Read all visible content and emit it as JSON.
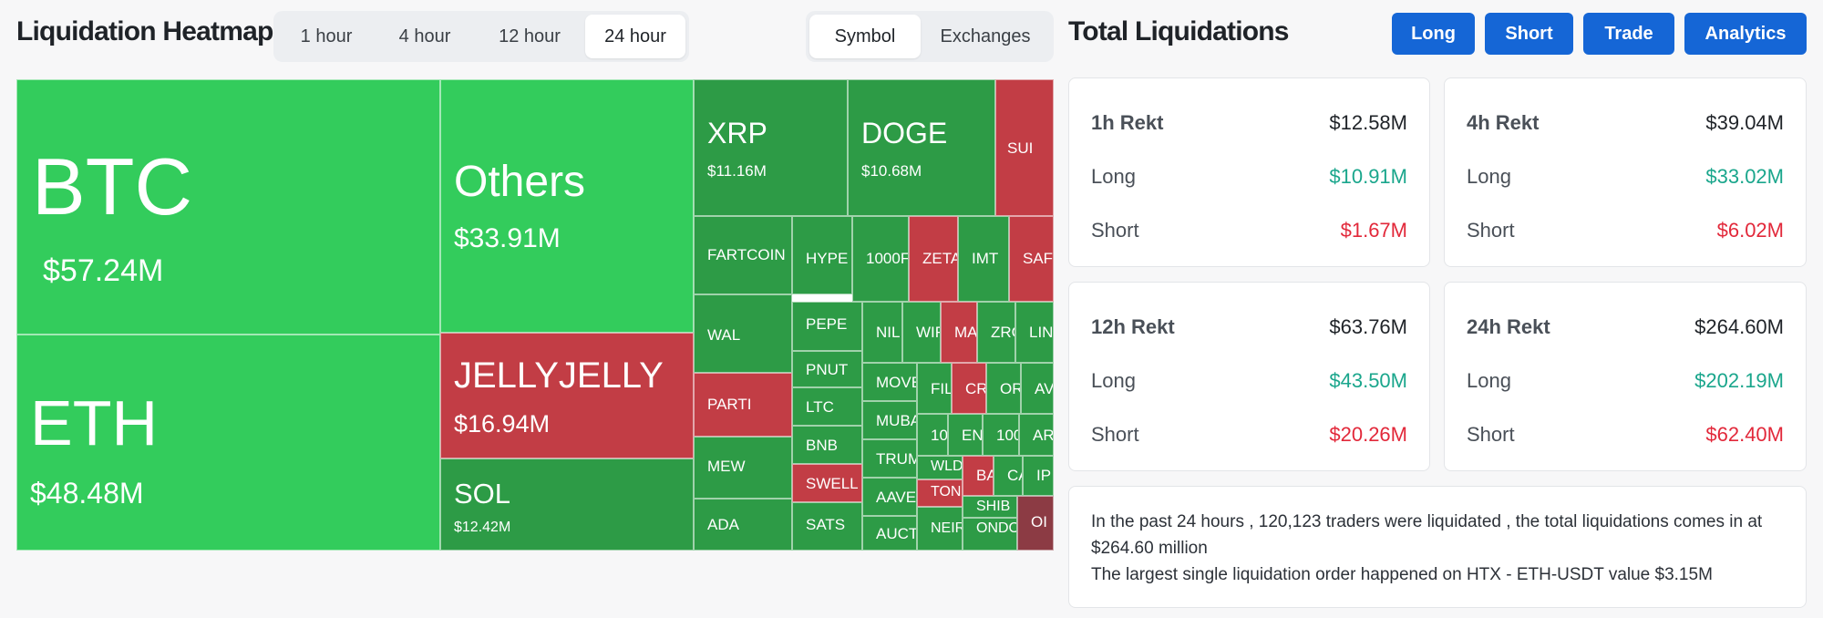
{
  "heatmap_title": "Liquidation Heatmap",
  "time_tabs": [
    {
      "label": "1 hour",
      "active": false
    },
    {
      "label": "4 hour",
      "active": false
    },
    {
      "label": "12 hour",
      "active": false
    },
    {
      "label": "24 hour",
      "active": true
    }
  ],
  "view_tabs": [
    {
      "label": "Symbol",
      "active": true
    },
    {
      "label": "Exchanges",
      "active": false
    }
  ],
  "total_title": "Total Liquidations",
  "action_buttons": [
    "Long",
    "Short",
    "Trade",
    "Analytics"
  ],
  "colors": {
    "accent": "#1566d6",
    "tile_green": "#33cc5c",
    "tile_dark_green": "#2d9b46",
    "tile_red": "#c23d45",
    "long": "#1aa68c",
    "short": "#e2283a"
  },
  "tiles": [
    {
      "name": "BTC",
      "value": "$57.24M"
    },
    {
      "name": "Others",
      "value": "$33.91M"
    },
    {
      "name": "XRP",
      "value": "$11.16M"
    },
    {
      "name": "DOGE",
      "value": "$10.68M"
    },
    {
      "name": "SUI",
      "value": ""
    },
    {
      "name": "ETH",
      "value": "$48.48M"
    },
    {
      "name": "JELLYJELLY",
      "value": "$16.94M"
    },
    {
      "name": "SOL",
      "value": "$12.42M"
    },
    {
      "name": "FARTCOIN",
      "value": ""
    },
    {
      "name": "HYPE",
      "value": ""
    },
    {
      "name": "1000F",
      "value": ""
    },
    {
      "name": "ZETA",
      "value": ""
    },
    {
      "name": "IMT",
      "value": ""
    },
    {
      "name": "SAF",
      "value": ""
    },
    {
      "name": "WAL",
      "value": ""
    },
    {
      "name": "PARTI",
      "value": ""
    },
    {
      "name": "MEW",
      "value": ""
    },
    {
      "name": "ADA",
      "value": ""
    },
    {
      "name": "PEPE",
      "value": ""
    },
    {
      "name": "PNUT",
      "value": ""
    },
    {
      "name": "LTC",
      "value": ""
    },
    {
      "name": "BNB",
      "value": ""
    },
    {
      "name": "SWELL",
      "value": ""
    },
    {
      "name": "SATS",
      "value": ""
    },
    {
      "name": "NIL",
      "value": ""
    },
    {
      "name": "WIF",
      "value": ""
    },
    {
      "name": "MA",
      "value": ""
    },
    {
      "name": "ZRO",
      "value": ""
    },
    {
      "name": "LIN",
      "value": ""
    },
    {
      "name": "MOVE",
      "value": ""
    },
    {
      "name": "FIL",
      "value": ""
    },
    {
      "name": "CR",
      "value": ""
    },
    {
      "name": "OR",
      "value": ""
    },
    {
      "name": "AV",
      "value": ""
    },
    {
      "name": "MUBA",
      "value": ""
    },
    {
      "name": "100",
      "value": ""
    },
    {
      "name": "EN",
      "value": ""
    },
    {
      "name": "100",
      "value": ""
    },
    {
      "name": "AR",
      "value": ""
    },
    {
      "name": "TRUM",
      "value": ""
    },
    {
      "name": "WLD",
      "value": ""
    },
    {
      "name": "BA",
      "value": ""
    },
    {
      "name": "CA",
      "value": ""
    },
    {
      "name": "IP",
      "value": ""
    },
    {
      "name": "AAVE",
      "value": ""
    },
    {
      "name": "TON",
      "value": ""
    },
    {
      "name": "SHIB",
      "value": ""
    },
    {
      "name": "ONDO",
      "value": ""
    },
    {
      "name": "OI",
      "value": ""
    },
    {
      "name": "AUCT",
      "value": ""
    },
    {
      "name": "NEIR",
      "value": ""
    }
  ],
  "stats": [
    {
      "title": "1h Rekt",
      "total": "$12.58M",
      "long_label": "Long",
      "long": "$10.91M",
      "short_label": "Short",
      "short": "$1.67M"
    },
    {
      "title": "4h Rekt",
      "total": "$39.04M",
      "long_label": "Long",
      "long": "$33.02M",
      "short_label": "Short",
      "short": "$6.02M"
    },
    {
      "title": "12h Rekt",
      "total": "$63.76M",
      "long_label": "Long",
      "long": "$43.50M",
      "short_label": "Short",
      "short": "$20.26M"
    },
    {
      "title": "24h Rekt",
      "total": "$264.60M",
      "long_label": "Long",
      "long": "$202.19M",
      "short_label": "Short",
      "short": "$62.40M"
    }
  ],
  "summary": {
    "line1": "In the past 24 hours , 120,123 traders were liquidated , the total liquidations comes in at $264.60 million",
    "line2": "The largest single liquidation order happened on HTX - ETH-USDT value $3.15M"
  }
}
